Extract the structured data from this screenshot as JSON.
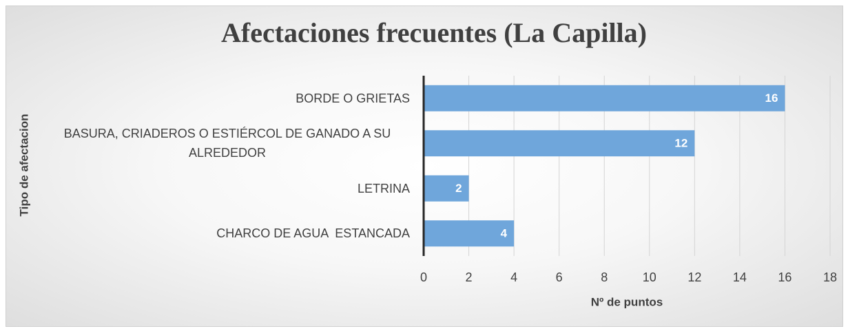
{
  "chart_data": {
    "type": "hbar",
    "title": "Afectaciones frecuentes (La Capilla)",
    "xlabel": "Nº de puntos",
    "ylabel": "Tipo de afectacion",
    "categories": [
      "BORDE O GRIETAS",
      "BASURA, CRIADEROS O ESTIÉRCOL DE GANADO A SU ALREDEDOR",
      "LETRINA",
      "CHARCO DE AGUA  ESTANCADA"
    ],
    "values": [
      16,
      12,
      2,
      4
    ],
    "color": "#6fa6db",
    "xlim": [
      0,
      18
    ],
    "xticks": [
      0,
      2,
      4,
      6,
      8,
      10,
      12,
      14,
      16,
      18
    ],
    "grid": true
  }
}
